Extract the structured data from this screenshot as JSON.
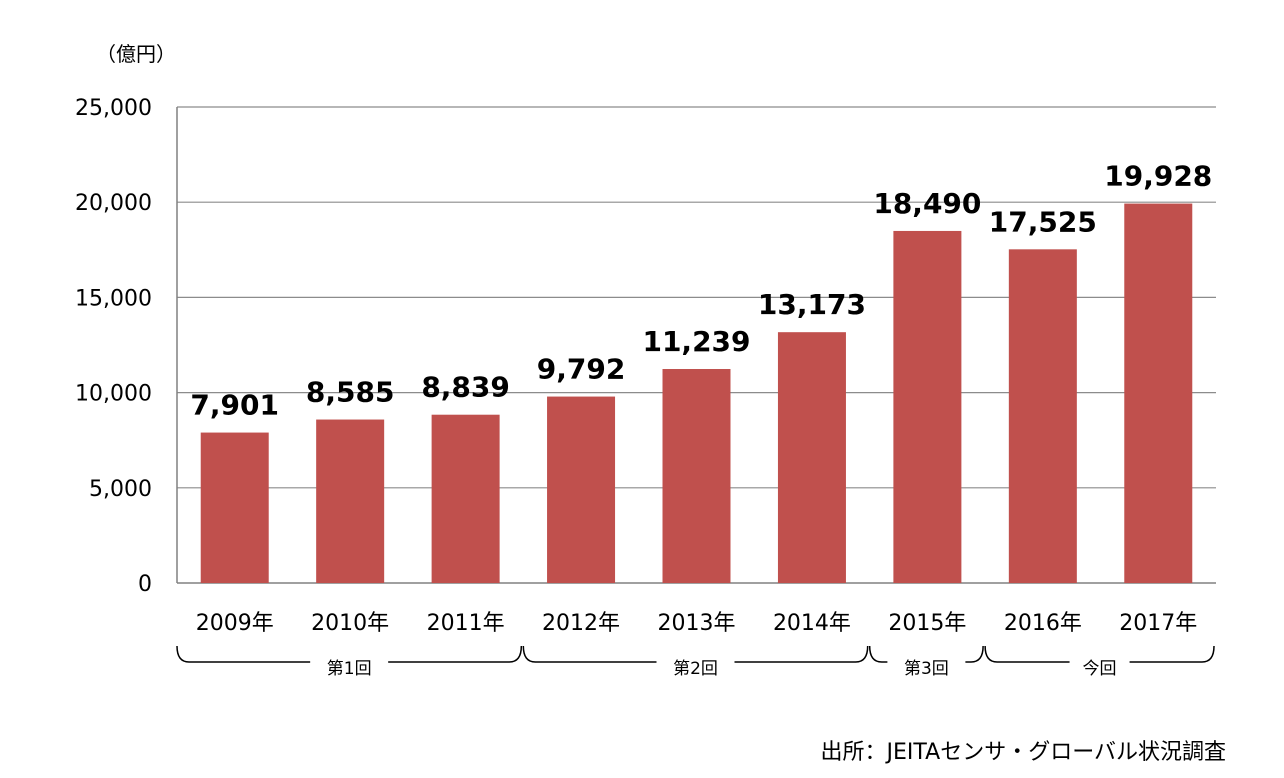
{
  "unit_label": "（億円）",
  "source": "出所：JEITAセンサ・グローバル状況調査",
  "chart_data": {
    "type": "bar",
    "categories": [
      "2009年",
      "2010年",
      "2011年",
      "2012年",
      "2013年",
      "2014年",
      "2015年",
      "2016年",
      "2017年"
    ],
    "values": [
      7901,
      8585,
      8839,
      9792,
      11239,
      13173,
      18490,
      17525,
      19928
    ],
    "value_labels": [
      "7,901",
      "8,585",
      "8,839",
      "9,792",
      "11,239",
      "13,173",
      "18,490",
      "17,525",
      "19,928"
    ],
    "ylim": [
      0,
      25000
    ],
    "yticks": [
      0,
      5000,
      10000,
      15000,
      20000,
      25000
    ],
    "ytick_labels": [
      "0",
      "5,000",
      "10,000",
      "15,000",
      "20,000",
      "25,000"
    ],
    "grid": true,
    "bar_color": "#c0504d",
    "groups": [
      {
        "label": "第1回",
        "start": 0,
        "end": 2
      },
      {
        "label": "第2回",
        "start": 3,
        "end": 5
      },
      {
        "label": "第3回",
        "start": 6,
        "end": 6
      },
      {
        "label": "今回",
        "start": 7,
        "end": 8
      }
    ]
  }
}
